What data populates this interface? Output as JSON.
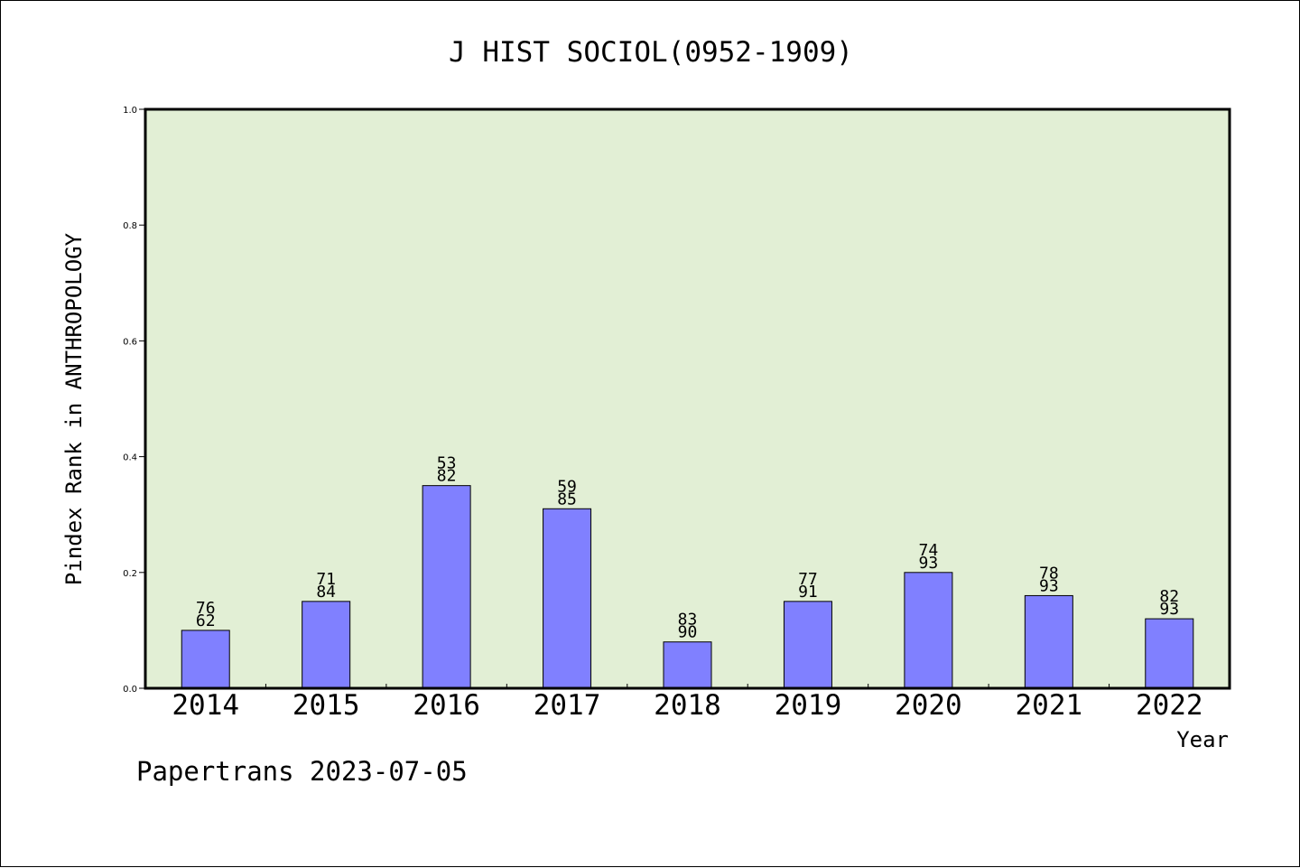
{
  "chart_data": {
    "type": "bar",
    "title": "J HIST SOCIOL(0952-1909)",
    "xlabel": "Year",
    "ylabel": "Pindex Rank in ANTHROPOLOGY",
    "ylim": [
      0,
      1.0
    ],
    "yticks": [
      "0.0",
      "0.2",
      "0.4",
      "0.6",
      "0.8",
      "1.0"
    ],
    "categories": [
      "2014",
      "2015",
      "2016",
      "2017",
      "2018",
      "2019",
      "2020",
      "2021",
      "2022"
    ],
    "values": [
      0.1,
      0.15,
      0.35,
      0.31,
      0.08,
      0.15,
      0.2,
      0.16,
      0.12
    ],
    "label_top": [
      "76",
      "71",
      "53",
      "59",
      "83",
      "77",
      "74",
      "78",
      "82"
    ],
    "label_bottom": [
      "62",
      "84",
      "82",
      "85",
      "90",
      "91",
      "93",
      "93",
      "93"
    ],
    "grid": false,
    "plot_background": "#e2efd5",
    "bar_color": "#8080ff"
  },
  "footer": "Papertrans 2023-07-05"
}
